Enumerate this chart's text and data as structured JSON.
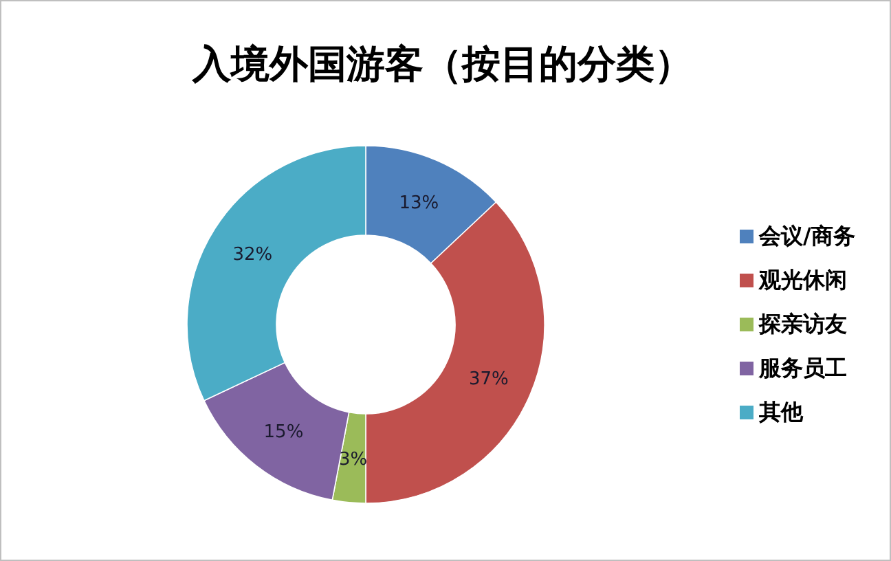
{
  "chart_data": {
    "type": "donut",
    "title": "入境外国游客（按目的分类）",
    "categories": [
      "会议/商务",
      "观光休闲",
      "探亲访友",
      "服务员工",
      "其他"
    ],
    "values": [
      13,
      37,
      3,
      15,
      32
    ],
    "value_labels": [
      "13%",
      "37%",
      "3%",
      "15%",
      "32%"
    ],
    "colors": [
      "#4f81bd",
      "#c0504d",
      "#9bbb59",
      "#8064a2",
      "#4bacc6"
    ],
    "legend": "right"
  }
}
